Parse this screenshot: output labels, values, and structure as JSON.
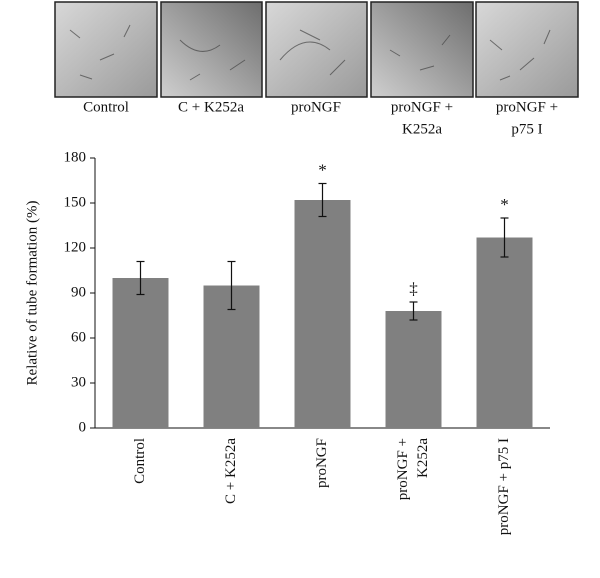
{
  "panels": [
    [
      "Control"
    ],
    [
      "C + K252a"
    ],
    [
      "proNGF"
    ],
    [
      "proNGF +",
      "K252a"
    ],
    [
      "proNGF +",
      "p75 I"
    ]
  ],
  "chart_data": {
    "type": "bar",
    "y_label": "Relative of tube formation (%)",
    "categories": [
      [
        "Control"
      ],
      [
        "C + K252a"
      ],
      [
        "proNGF"
      ],
      [
        "proNGF +",
        "K252a"
      ],
      [
        "proNGF + p75 I"
      ]
    ],
    "values": [
      100,
      95,
      152,
      78,
      127
    ],
    "errors": [
      11,
      16,
      11,
      6,
      13
    ],
    "annotations": [
      null,
      null,
      "*",
      "‡",
      "*"
    ],
    "color": "#808080",
    "ylim": [
      0,
      180
    ],
    "yticks": [
      0,
      30,
      60,
      90,
      120,
      150,
      180
    ]
  }
}
